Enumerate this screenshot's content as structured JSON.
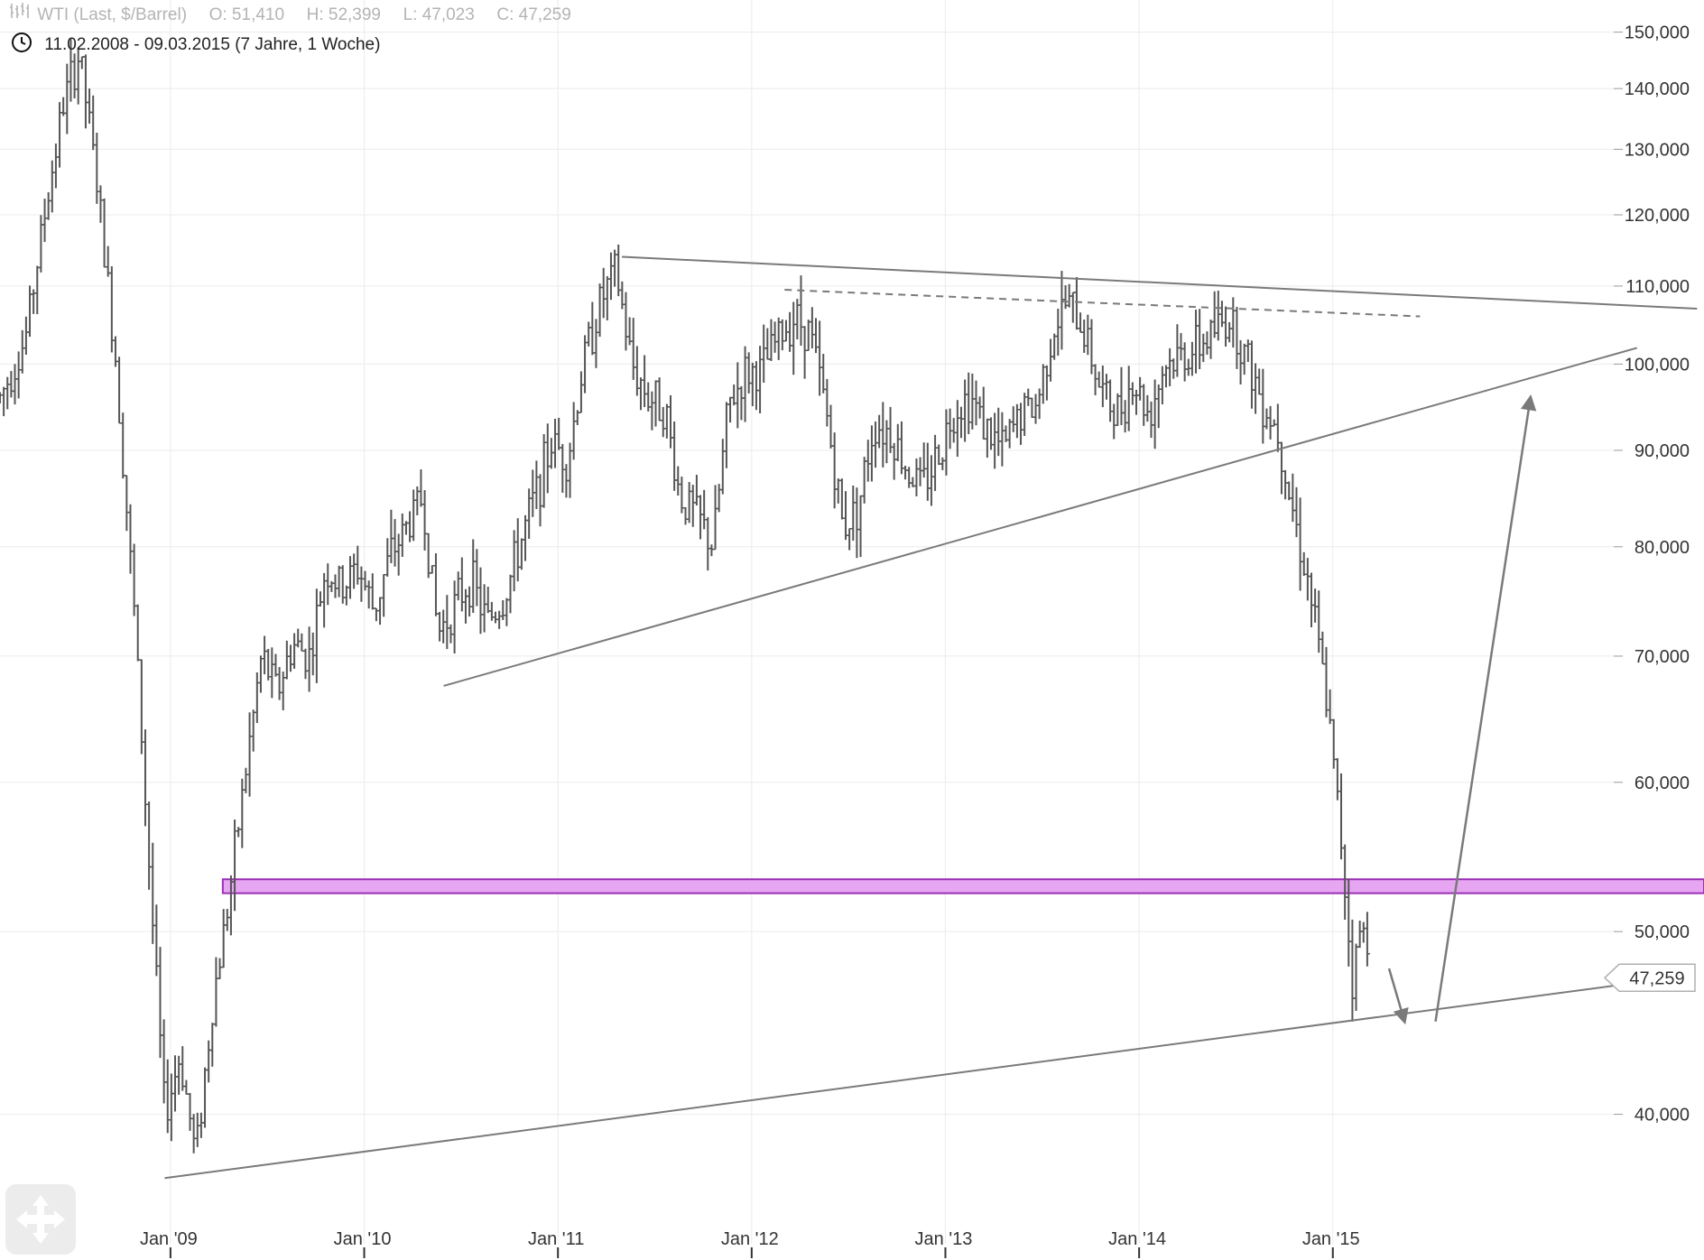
{
  "header": {
    "instrument": "WTI (Last, $/Barrel)",
    "ohlc": {
      "open": "O: 51,410",
      "high": "H: 52,399",
      "low": "L: 47,023",
      "close": "C: 47,259"
    },
    "period": "11.02.2008 - 09.03.2015 (7 Jahre, 1 Woche)",
    "icons": [
      "bar-chart-icon",
      "clock-icon"
    ]
  },
  "controls": {
    "move_icon": "move-arrows-icon"
  },
  "colors": {
    "price_bars": "#555555",
    "trendlines": "#7a7a7a",
    "support_zone_fill": "#e7a6f2",
    "support_zone_stroke": "#9b2fb6",
    "grid": "#ebebeb",
    "axis_text": "#333333"
  },
  "chart_data": {
    "type": "bar",
    "title": "WTI (Last, $/Barrel)",
    "scale": "log",
    "ylim": [
      34,
      156
    ],
    "y_ticks": [
      "150,000",
      "140,000",
      "130,000",
      "120,000",
      "110,000",
      "100,000",
      "90,000",
      "80,000",
      "70,000",
      "60,000",
      "50,000",
      "40,000"
    ],
    "y_tick_values": [
      150,
      140,
      130,
      120,
      110,
      100,
      90,
      80,
      70,
      60,
      50,
      40
    ],
    "x_ticks": [
      "Jan '09",
      "Jan '10",
      "Jan '11",
      "Jan '12",
      "Jan '13",
      "Jan '14",
      "Jan '15"
    ],
    "x_tick_values": [
      2009.0,
      2010.0,
      2011.0,
      2012.0,
      2013.0,
      2014.0,
      2015.0
    ],
    "xlim": [
      2008.12,
      2016.45
    ],
    "grid": true,
    "last_price": "47,259",
    "last_price_value": 47.259,
    "price_path": [
      [
        2008.12,
        96
      ],
      [
        2008.25,
        103
      ],
      [
        2008.35,
        120
      ],
      [
        2008.45,
        138
      ],
      [
        2008.53,
        146
      ],
      [
        2008.62,
        125
      ],
      [
        2008.72,
        100
      ],
      [
        2008.82,
        72
      ],
      [
        2008.9,
        52
      ],
      [
        2008.97,
        40
      ],
      [
        2009.05,
        43
      ],
      [
        2009.13,
        38
      ],
      [
        2009.22,
        46
      ],
      [
        2009.3,
        52
      ],
      [
        2009.38,
        60
      ],
      [
        2009.47,
        70
      ],
      [
        2009.55,
        67
      ],
      [
        2009.63,
        71
      ],
      [
        2009.72,
        70
      ],
      [
        2009.8,
        78
      ],
      [
        2009.88,
        76
      ],
      [
        2009.97,
        78
      ],
      [
        2010.05,
        74
      ],
      [
        2010.13,
        79
      ],
      [
        2010.22,
        82
      ],
      [
        2010.3,
        85
      ],
      [
        2010.38,
        72
      ],
      [
        2010.45,
        74
      ],
      [
        2010.55,
        77
      ],
      [
        2010.63,
        73
      ],
      [
        2010.72,
        75
      ],
      [
        2010.8,
        80
      ],
      [
        2010.88,
        85
      ],
      [
        2010.97,
        91
      ],
      [
        2011.05,
        89
      ],
      [
        2011.13,
        100
      ],
      [
        2011.22,
        108
      ],
      [
        2011.3,
        112
      ],
      [
        2011.38,
        100
      ],
      [
        2011.47,
        96
      ],
      [
        2011.55,
        95
      ],
      [
        2011.63,
        85
      ],
      [
        2011.72,
        83
      ],
      [
        2011.8,
        80
      ],
      [
        2011.88,
        95
      ],
      [
        2011.97,
        99
      ],
      [
        2012.05,
        99
      ],
      [
        2012.13,
        103
      ],
      [
        2012.22,
        106
      ],
      [
        2012.3,
        104
      ],
      [
        2012.38,
        95
      ],
      [
        2012.47,
        82
      ],
      [
        2012.55,
        84
      ],
      [
        2012.63,
        93
      ],
      [
        2012.72,
        92
      ],
      [
        2012.8,
        88
      ],
      [
        2012.88,
        86
      ],
      [
        2012.97,
        90
      ],
      [
        2013.05,
        95
      ],
      [
        2013.13,
        96
      ],
      [
        2013.22,
        92
      ],
      [
        2013.3,
        90
      ],
      [
        2013.38,
        94
      ],
      [
        2013.47,
        95
      ],
      [
        2013.55,
        104
      ],
      [
        2013.63,
        108
      ],
      [
        2013.72,
        104
      ],
      [
        2013.8,
        97
      ],
      [
        2013.88,
        94
      ],
      [
        2013.97,
        98
      ],
      [
        2014.05,
        94
      ],
      [
        2014.13,
        100
      ],
      [
        2014.22,
        101
      ],
      [
        2014.3,
        102
      ],
      [
        2014.38,
        104
      ],
      [
        2014.47,
        106
      ],
      [
        2014.55,
        101
      ],
      [
        2014.63,
        96
      ],
      [
        2014.72,
        92
      ],
      [
        2014.8,
        83
      ],
      [
        2014.88,
        76
      ],
      [
        2014.97,
        66
      ],
      [
        2015.05,
        55
      ],
      [
        2015.1,
        47
      ],
      [
        2015.14,
        50
      ],
      [
        2015.18,
        49.5
      ]
    ],
    "trendlines": [
      {
        "style": "solid",
        "points": [
          [
            2011.33,
            114
          ],
          [
            2016.88,
            107
          ]
        ]
      },
      {
        "style": "dashed",
        "points": [
          [
            2012.17,
            109.5
          ],
          [
            2015.45,
            106
          ]
        ]
      },
      {
        "style": "solid",
        "points": [
          [
            2010.41,
            67.5
          ],
          [
            2016.57,
            102
          ]
        ]
      },
      {
        "style": "solid",
        "points": [
          [
            2008.97,
            37
          ],
          [
            2016.45,
            46.8
          ]
        ]
      }
    ],
    "arrows": [
      {
        "from": [
          2015.29,
          47.8
        ],
        "to": [
          2015.37,
          44.8
        ]
      },
      {
        "from": [
          2015.53,
          44.8
        ],
        "to": [
          2016.02,
          96
        ]
      }
    ],
    "support_zone": {
      "low": 52.4,
      "high": 53.3,
      "x_start": 2009.27
    }
  }
}
